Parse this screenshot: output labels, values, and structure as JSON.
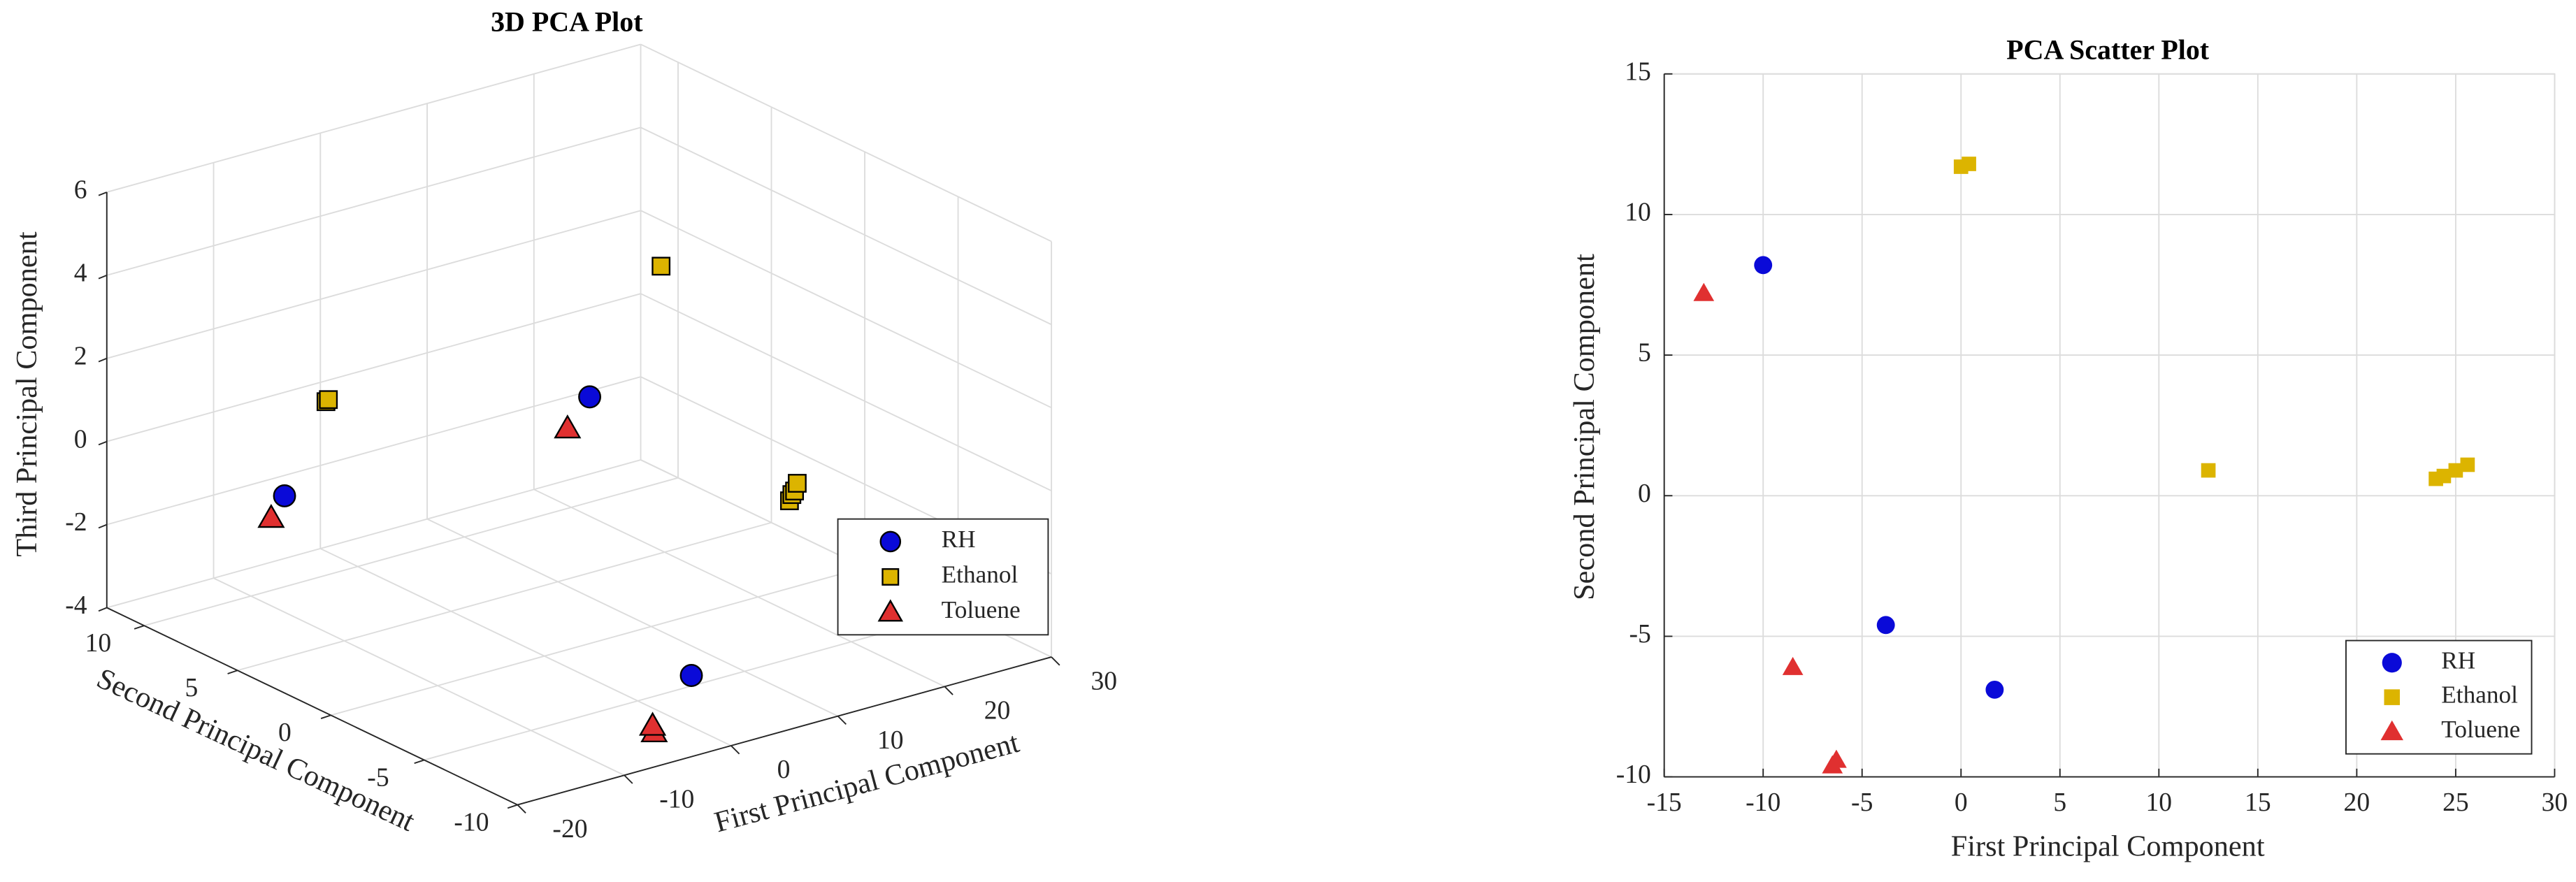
{
  "chart_data": [
    {
      "type": "scatter3d",
      "title": "3D PCA Plot",
      "xlabel": "First Principal Component",
      "ylabel": "Second Principal Component",
      "zlabel": "Third Principal Component",
      "xlim": [
        -20,
        30
      ],
      "xticks": [
        -20,
        -10,
        0,
        10,
        20,
        30
      ],
      "ylim": [
        -10,
        12
      ],
      "yticks": [
        -10,
        -5,
        0,
        5,
        10
      ],
      "zlim": [
        -4,
        6
      ],
      "zticks": [
        -4,
        -2,
        0,
        2,
        4,
        6
      ],
      "grid": true,
      "legend": "east",
      "series": [
        {
          "name": "RH",
          "color": "#0a0ad8",
          "marker": "circle",
          "x": [
            -10,
            -3.8,
            1.7
          ],
          "y": [
            8.2,
            -4.6,
            -6.9
          ],
          "z": [
            -1.2,
            3.5,
            -3.1
          ]
        },
        {
          "name": "Ethanol",
          "color": "#dcb400",
          "marker": "square",
          "x": [
            0,
            0.4,
            12.5,
            24,
            24.4,
            25,
            25.6
          ],
          "y": [
            11.7,
            11.8,
            0.9,
            0.6,
            0.7,
            0.9,
            1.1
          ],
          "z": [
            -0.4,
            -0.4,
            4.3,
            -2.1,
            -2.0,
            -2.0,
            -1.9
          ]
        },
        {
          "name": "Toluene",
          "color": "#e03030",
          "marker": "triangle",
          "x": [
            -13,
            -8.5,
            -6.5,
            -6.3
          ],
          "y": [
            7.2,
            -6.1,
            -9.6,
            -9.4
          ],
          "z": [
            -1.3,
            3.4,
            -3.3,
            -3.2
          ]
        }
      ]
    },
    {
      "type": "scatter",
      "title": "PCA Scatter Plot",
      "xlabel": "First Principal Component",
      "ylabel": "Second Principal Component",
      "xlim": [
        -15,
        30
      ],
      "xticks": [
        -15,
        -10,
        -5,
        0,
        5,
        10,
        15,
        20,
        25,
        30
      ],
      "ylim": [
        -10,
        15
      ],
      "yticks": [
        -10,
        -5,
        0,
        5,
        10,
        15
      ],
      "grid": true,
      "legend": "southeast",
      "series": [
        {
          "name": "RH",
          "color": "#0a0ad8",
          "marker": "circle",
          "x": [
            -10,
            -3.8,
            1.7
          ],
          "y": [
            8.2,
            -4.6,
            -6.9
          ]
        },
        {
          "name": "Ethanol",
          "color": "#dcb400",
          "marker": "square",
          "x": [
            0,
            0.4,
            12.5,
            24,
            24.4,
            25,
            25.6
          ],
          "y": [
            11.7,
            11.8,
            0.9,
            0.6,
            0.7,
            0.9,
            1.1
          ]
        },
        {
          "name": "Toluene",
          "color": "#e03030",
          "marker": "triangle",
          "x": [
            -13,
            -8.5,
            -6.5,
            -6.3
          ],
          "y": [
            7.2,
            -6.1,
            -9.6,
            -9.4
          ]
        }
      ]
    }
  ]
}
